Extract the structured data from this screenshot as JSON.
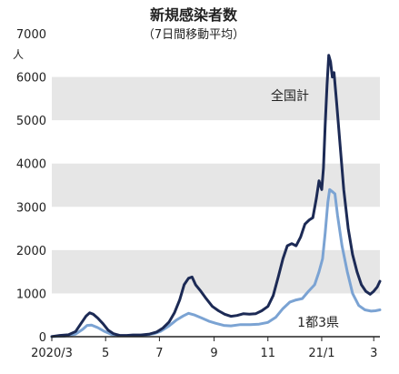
{
  "chart_data": {
    "type": "line",
    "title": "新規感染者数",
    "subtitle": "（7日間移動平均）",
    "unit": "人",
    "ylim": [
      0,
      7000
    ],
    "y_ticks": [
      "0",
      "1000",
      "2000",
      "3000",
      "4000",
      "5000",
      "6000",
      "7000"
    ],
    "x_range": [
      "2020-03-01",
      "2021-03-08"
    ],
    "x_ticks": [
      {
        "date": "2020-03-01",
        "label": "2020/3"
      },
      {
        "date": "2020-05-01",
        "label": "5"
      },
      {
        "date": "2020-07-01",
        "label": "7"
      },
      {
        "date": "2020-09-01",
        "label": "9"
      },
      {
        "date": "2020-11-01",
        "label": "11"
      },
      {
        "date": "2021-01-01",
        "label": "21/1"
      },
      {
        "date": "2021-03-01",
        "label": "3"
      }
    ],
    "grid": "alternating horizontal bands",
    "colors": {
      "national": "#1c2a55",
      "tokyo_area": "#7ba3d3",
      "band": "#e6e6e6",
      "axis": "#222222"
    },
    "series": [
      {
        "name": "全国計",
        "values": [
          [
            "2020-03-01",
            5
          ],
          [
            "2020-03-10",
            30
          ],
          [
            "2020-03-20",
            45
          ],
          [
            "2020-03-28",
            120
          ],
          [
            "2020-04-03",
            300
          ],
          [
            "2020-04-09",
            480
          ],
          [
            "2020-04-13",
            550
          ],
          [
            "2020-04-17",
            520
          ],
          [
            "2020-04-22",
            430
          ],
          [
            "2020-04-28",
            300
          ],
          [
            "2020-05-04",
            150
          ],
          [
            "2020-05-10",
            70
          ],
          [
            "2020-05-17",
            30
          ],
          [
            "2020-05-25",
            30
          ],
          [
            "2020-06-01",
            40
          ],
          [
            "2020-06-10",
            40
          ],
          [
            "2020-06-20",
            60
          ],
          [
            "2020-06-28",
            110
          ],
          [
            "2020-07-05",
            200
          ],
          [
            "2020-07-12",
            340
          ],
          [
            "2020-07-18",
            550
          ],
          [
            "2020-07-24",
            850
          ],
          [
            "2020-07-29",
            1200
          ],
          [
            "2020-08-03",
            1350
          ],
          [
            "2020-08-07",
            1380
          ],
          [
            "2020-08-11",
            1200
          ],
          [
            "2020-08-17",
            1050
          ],
          [
            "2020-08-23",
            880
          ],
          [
            "2020-08-30",
            700
          ],
          [
            "2020-09-06",
            600
          ],
          [
            "2020-09-13",
            520
          ],
          [
            "2020-09-20",
            470
          ],
          [
            "2020-09-27",
            490
          ],
          [
            "2020-10-04",
            530
          ],
          [
            "2020-10-11",
            520
          ],
          [
            "2020-10-18",
            530
          ],
          [
            "2020-10-25",
            600
          ],
          [
            "2020-11-01",
            700
          ],
          [
            "2020-11-07",
            950
          ],
          [
            "2020-11-13",
            1400
          ],
          [
            "2020-11-18",
            1800
          ],
          [
            "2020-11-23",
            2100
          ],
          [
            "2020-11-28",
            2150
          ],
          [
            "2020-12-03",
            2100
          ],
          [
            "2020-12-08",
            2300
          ],
          [
            "2020-12-13",
            2600
          ],
          [
            "2020-12-18",
            2700
          ],
          [
            "2020-12-22",
            2750
          ],
          [
            "2020-12-26",
            3200
          ],
          [
            "2020-12-29",
            3600
          ],
          [
            "2021-01-01",
            3400
          ],
          [
            "2021-01-03",
            3900
          ],
          [
            "2021-01-05",
            4900
          ],
          [
            "2021-01-07",
            5800
          ],
          [
            "2021-01-09",
            6500
          ],
          [
            "2021-01-11",
            6350
          ],
          [
            "2021-01-13",
            6000
          ],
          [
            "2021-01-15",
            6100
          ],
          [
            "2021-01-18",
            5400
          ],
          [
            "2021-01-22",
            4400
          ],
          [
            "2021-01-26",
            3400
          ],
          [
            "2021-01-31",
            2500
          ],
          [
            "2021-02-05",
            1900
          ],
          [
            "2021-02-10",
            1500
          ],
          [
            "2021-02-15",
            1200
          ],
          [
            "2021-02-20",
            1050
          ],
          [
            "2021-02-25",
            980
          ],
          [
            "2021-03-01",
            1050
          ],
          [
            "2021-03-05",
            1150
          ],
          [
            "2021-03-08",
            1280
          ]
        ]
      },
      {
        "name": "1都3県",
        "values": [
          [
            "2020-03-01",
            2
          ],
          [
            "2020-03-15",
            10
          ],
          [
            "2020-03-28",
            60
          ],
          [
            "2020-04-05",
            170
          ],
          [
            "2020-04-10",
            260
          ],
          [
            "2020-04-15",
            270
          ],
          [
            "2020-04-22",
            210
          ],
          [
            "2020-04-30",
            120
          ],
          [
            "2020-05-08",
            50
          ],
          [
            "2020-05-18",
            20
          ],
          [
            "2020-06-01",
            20
          ],
          [
            "2020-06-15",
            40
          ],
          [
            "2020-06-25",
            70
          ],
          [
            "2020-07-03",
            130
          ],
          [
            "2020-07-12",
            250
          ],
          [
            "2020-07-20",
            380
          ],
          [
            "2020-07-28",
            480
          ],
          [
            "2020-08-03",
            540
          ],
          [
            "2020-08-10",
            500
          ],
          [
            "2020-08-18",
            430
          ],
          [
            "2020-08-26",
            360
          ],
          [
            "2020-09-03",
            310
          ],
          [
            "2020-09-12",
            260
          ],
          [
            "2020-09-20",
            250
          ],
          [
            "2020-10-01",
            280
          ],
          [
            "2020-10-12",
            280
          ],
          [
            "2020-10-22",
            290
          ],
          [
            "2020-11-01",
            330
          ],
          [
            "2020-11-10",
            450
          ],
          [
            "2020-11-18",
            650
          ],
          [
            "2020-11-26",
            800
          ],
          [
            "2020-12-03",
            850
          ],
          [
            "2020-12-10",
            880
          ],
          [
            "2020-12-17",
            1050
          ],
          [
            "2020-12-24",
            1200
          ],
          [
            "2020-12-29",
            1500
          ],
          [
            "2021-01-02",
            1800
          ],
          [
            "2021-01-05",
            2400
          ],
          [
            "2021-01-08",
            3100
          ],
          [
            "2021-01-10",
            3400
          ],
          [
            "2021-01-13",
            3350
          ],
          [
            "2021-01-16",
            3300
          ],
          [
            "2021-01-19",
            2800
          ],
          [
            "2021-01-24",
            2100
          ],
          [
            "2021-01-30",
            1500
          ],
          [
            "2021-02-05",
            1000
          ],
          [
            "2021-02-12",
            720
          ],
          [
            "2021-02-19",
            620
          ],
          [
            "2021-02-26",
            590
          ],
          [
            "2021-03-03",
            600
          ],
          [
            "2021-03-08",
            620
          ]
        ]
      }
    ]
  }
}
